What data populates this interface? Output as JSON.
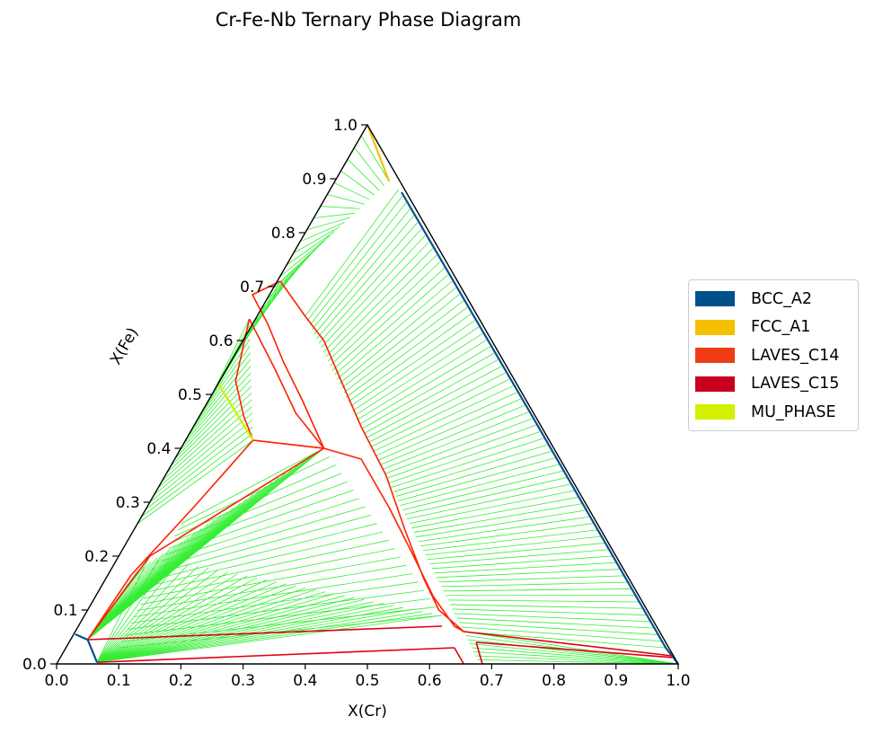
{
  "chart_data": {
    "type": "ternary-phase-diagram",
    "title": "Cr-Fe-Nb Ternary Phase Diagram",
    "xlabel": "X(Cr)",
    "ylabel": "X(Fe)",
    "xticks": [
      "0.0",
      "0.1",
      "0.2",
      "0.3",
      "0.4",
      "0.5",
      "0.6",
      "0.7",
      "0.8",
      "0.9",
      "1.0"
    ],
    "yticks": [
      "0.0",
      "0.1",
      "0.2",
      "0.3",
      "0.4",
      "0.5",
      "0.6",
      "0.7",
      "0.8",
      "0.9",
      "1.0"
    ],
    "xlim": [
      0,
      1
    ],
    "ylim": [
      0,
      1
    ],
    "legend_position": "right",
    "legend": [
      {
        "name": "BCC_A2",
        "color": "#00508c"
      },
      {
        "name": "FCC_A1",
        "color": "#f5c000"
      },
      {
        "name": "LAVES_C14",
        "color": "#f03c14"
      },
      {
        "name": "LAVES_C15",
        "color": "#c8001e"
      },
      {
        "name": "MU_PHASE",
        "color": "#d2f000"
      }
    ],
    "tieline_color": "#33ee33",
    "phase_boundaries": [
      {
        "phase": "LAVES_C14",
        "color": "#ff2200",
        "points": [
          [
            0.36,
            0.71
          ],
          [
            0.4,
            0.645
          ],
          [
            0.43,
            0.6
          ],
          [
            0.456,
            0.53
          ],
          [
            0.49,
            0.44
          ],
          [
            0.53,
            0.35
          ],
          [
            0.56,
            0.25
          ],
          [
            0.59,
            0.16
          ],
          [
            0.615,
            0.1
          ],
          [
            0.655,
            0.06
          ],
          [
            0.64,
            0.07
          ],
          [
            0.606,
            0.125
          ],
          [
            0.57,
            0.21
          ],
          [
            0.535,
            0.29
          ],
          [
            0.49,
            0.38
          ],
          [
            0.43,
            0.4
          ],
          [
            0.395,
            0.49
          ],
          [
            0.365,
            0.56
          ],
          [
            0.34,
            0.63
          ],
          [
            0.315,
            0.685
          ],
          [
            0.36,
            0.71
          ]
        ]
      },
      {
        "phase": "LAVES_C14",
        "color": "#ff2200",
        "points": [
          [
            0.31,
            0.64
          ],
          [
            0.35,
            0.55
          ],
          [
            0.385,
            0.465
          ],
          [
            0.43,
            0.4
          ],
          [
            0.316,
            0.415
          ],
          [
            0.301,
            0.46
          ],
          [
            0.288,
            0.525
          ],
          [
            0.31,
            0.64
          ]
        ]
      },
      {
        "phase": "LAVES_C14",
        "color": "#ff2200",
        "points": [
          [
            0.316,
            0.415
          ],
          [
            0.43,
            0.4
          ],
          [
            0.15,
            0.2
          ],
          [
            0.05,
            0.045
          ],
          [
            0.12,
            0.165
          ],
          [
            0.22,
            0.29
          ],
          [
            0.316,
            0.415
          ]
        ]
      }
    ],
    "phase_lines": [
      {
        "phase": "BCC_A2",
        "color": "#00508c",
        "points": [
          [
            0.555,
            0.875
          ],
          [
            0.76,
            0.47
          ],
          [
            0.98,
            0.03
          ],
          [
            1.0,
            0.0
          ]
        ]
      },
      {
        "phase": "FCC_A1",
        "color": "#f5c000",
        "points": [
          [
            0.5,
            1.0
          ],
          [
            0.535,
            0.895
          ]
        ]
      },
      {
        "phase": "MU_PHASE",
        "color": "#d2f000",
        "points": [
          [
            0.26,
            0.52
          ],
          [
            0.316,
            0.415
          ]
        ]
      },
      {
        "phase": "BCC_A2",
        "color": "#00508c",
        "points": [
          [
            0.03,
            0.055
          ],
          [
            0.05,
            0.045
          ],
          [
            0.065,
            0.003
          ]
        ]
      }
    ]
  }
}
